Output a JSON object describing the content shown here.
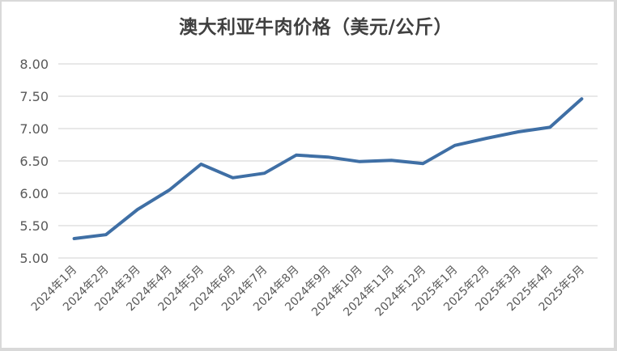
{
  "chart_data": {
    "type": "line",
    "title": "澳大利亚牛肉价格（美元/公斤）",
    "xlabel": "",
    "ylabel": "",
    "ylim": [
      5.0,
      8.0
    ],
    "yticks": [
      "5.00",
      "5.50",
      "6.00",
      "6.50",
      "7.00",
      "7.50",
      "8.00"
    ],
    "grid": true,
    "legend": null,
    "categories": [
      "2024年1月",
      "2024年2月",
      "2024年3月",
      "2024年4月",
      "2024年5月",
      "2024年6月",
      "2024年7月",
      "2024年8月",
      "2024年9月",
      "2024年10月",
      "2024年11月",
      "2024年12月",
      "2025年1月",
      "2025年2月",
      "2025年3月",
      "2025年4月",
      "2025年5月"
    ],
    "series": [
      {
        "name": "澳大利亚牛肉价格",
        "color": "#3f6fa5",
        "values": [
          5.3,
          5.36,
          5.75,
          6.05,
          6.45,
          6.24,
          6.31,
          6.59,
          6.56,
          6.49,
          6.51,
          6.46,
          6.74,
          6.85,
          6.95,
          7.02,
          7.46
        ]
      }
    ]
  },
  "colors": {
    "line": "#3f6fa5",
    "grid": "#d9d9d9",
    "text": "#595959",
    "title": "#404040"
  }
}
